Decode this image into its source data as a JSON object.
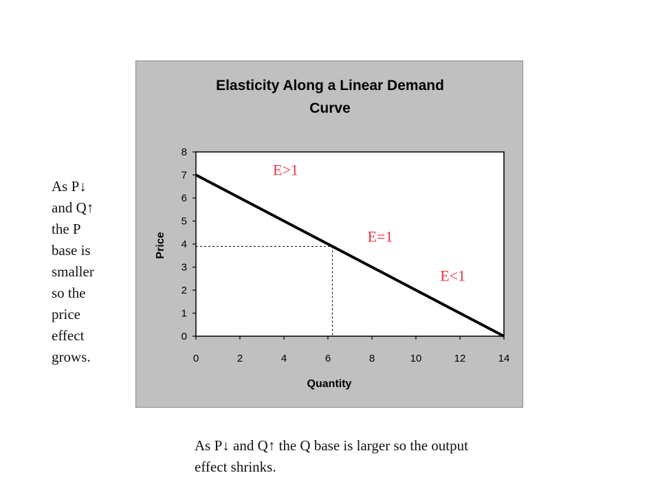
{
  "side_note": "As P↓\nand Q↑\nthe P\nbase is\nsmaller\nso the\nprice\neffect\ngrows.",
  "bottom_note": "As P↓ and Q↑ the Q base is larger so the output effect shrinks.",
  "chart_data": {
    "type": "line",
    "title_lines": [
      "Elasticity Along a Linear Demand",
      "Curve"
    ],
    "xlabel": "Quantity",
    "ylabel": "Price",
    "xlim": [
      0,
      14
    ],
    "ylim": [
      0,
      8
    ],
    "x_ticks": [
      "0",
      "2",
      "4",
      "6",
      "8",
      "10",
      "12",
      "14"
    ],
    "y_ticks": [
      "0",
      "1",
      "2",
      "3",
      "4",
      "5",
      "6",
      "7",
      "8"
    ],
    "grid": false,
    "series": [
      {
        "x": [
          0,
          14
        ],
        "y": [
          7,
          0
        ],
        "color": "#000000"
      }
    ],
    "reference_point": {
      "x": 6.2,
      "y": 3.9,
      "style": "dashed"
    },
    "annotations": [
      {
        "text": "E>1",
        "x": 3.5,
        "y": 7.0,
        "color": "#e8313f"
      },
      {
        "text": "E=1",
        "x": 7.8,
        "y": 4.1,
        "color": "#e8313f"
      },
      {
        "text": "E<1",
        "x": 11.1,
        "y": 2.4,
        "color": "#e8313f"
      }
    ],
    "colors": {
      "panel": "#c0c0c0",
      "plot_area": "#ffffff",
      "annotation": "#e8313f"
    }
  }
}
